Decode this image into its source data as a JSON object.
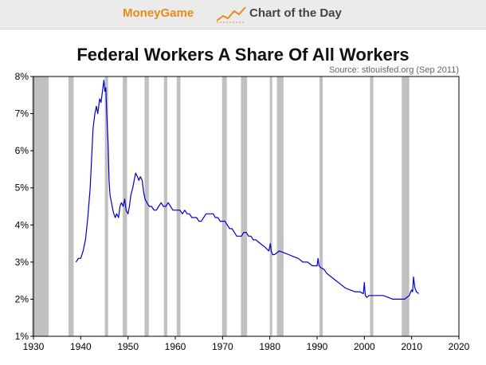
{
  "banner": {
    "brand": "MoneyGame",
    "brand_icon": "trend-line-icon",
    "title": "Chart of the Day",
    "background": "#ebebeb",
    "brand_color": "#e88a1a"
  },
  "chart_data": {
    "type": "line",
    "title": "Federal Workers A Share Of All Workers",
    "source": "Source: stlouisfed.org (Sep 2011)",
    "xlabel": "",
    "ylabel": "",
    "xlim": [
      1930,
      2020
    ],
    "ylim": [
      1,
      8
    ],
    "x_ticks": [
      1930,
      1940,
      1950,
      1960,
      1970,
      1980,
      1990,
      2000,
      2010,
      2020
    ],
    "x_tick_labels": [
      "1930",
      "1940",
      "1950",
      "1960",
      "1970",
      "1980",
      "1990",
      "2000",
      "2010",
      "2020"
    ],
    "y_ticks": [
      1,
      2,
      3,
      4,
      5,
      6,
      7,
      8
    ],
    "y_tick_labels": [
      "1%",
      "2%",
      "3%",
      "4%",
      "5%",
      "6%",
      "7%",
      "8%"
    ],
    "grid": false,
    "legend": "none",
    "line_color": "#0000cc",
    "recession_color": "#c0c0c0",
    "recessions": [
      [
        1929.7,
        1933.2
      ],
      [
        1937.4,
        1938.5
      ],
      [
        1945.1,
        1945.8
      ],
      [
        1948.9,
        1949.8
      ],
      [
        1953.5,
        1954.4
      ],
      [
        1957.6,
        1958.3
      ],
      [
        1960.3,
        1961.1
      ],
      [
        1969.9,
        1970.9
      ],
      [
        1973.9,
        1975.2
      ],
      [
        1980.0,
        1980.5
      ],
      [
        1981.5,
        1982.9
      ],
      [
        1990.5,
        1991.2
      ],
      [
        2001.2,
        2001.9
      ],
      [
        2007.9,
        2009.5
      ]
    ],
    "series": [
      {
        "x": [
          1939.0,
          1939.5,
          1940.0,
          1940.5,
          1941.0,
          1941.5,
          1942.0,
          1942.3,
          1942.6,
          1943.0,
          1943.3,
          1943.6,
          1944.0,
          1944.3,
          1944.6,
          1944.9,
          1945.1,
          1945.3,
          1945.5,
          1945.8,
          1946.0,
          1946.2,
          1946.5,
          1946.8,
          1947.0,
          1947.3,
          1947.6,
          1948.0,
          1948.3,
          1948.6,
          1949.0,
          1949.3,
          1949.6,
          1950.0,
          1950.3,
          1950.6,
          1951.0,
          1951.3,
          1951.6,
          1952.0,
          1952.3,
          1952.6,
          1953.0,
          1953.3,
          1953.6,
          1954.0,
          1954.5,
          1955.0,
          1955.5,
          1956.0,
          1956.5,
          1957.0,
          1957.5,
          1958.0,
          1958.5,
          1959.0,
          1959.5,
          1960.0,
          1960.5,
          1961.0,
          1961.5,
          1962.0,
          1962.5,
          1963.0,
          1963.5,
          1964.0,
          1964.5,
          1965.0,
          1965.5,
          1966.0,
          1966.5,
          1967.0,
          1967.5,
          1968.0,
          1968.5,
          1969.0,
          1969.5,
          1970.0,
          1970.5,
          1971.0,
          1971.5,
          1972.0,
          1972.5,
          1973.0,
          1973.5,
          1974.0,
          1974.5,
          1975.0,
          1975.5,
          1976.0,
          1976.5,
          1977.0,
          1978.0,
          1979.0,
          1979.8,
          1980.1,
          1980.3,
          1980.6,
          1981.0,
          1982.0,
          1983.0,
          1984.0,
          1985.0,
          1986.0,
          1987.0,
          1988.0,
          1989.0,
          1990.0,
          1990.2,
          1990.4,
          1990.8,
          1991.5,
          1992.0,
          1993.0,
          1994.0,
          1995.0,
          1996.0,
          1997.0,
          1998.0,
          1999.0,
          1999.8,
          2000.0,
          2000.2,
          2000.5,
          2001.0,
          2002.0,
          2003.0,
          2004.0,
          2005.0,
          2006.0,
          2007.0,
          2007.5,
          2008.0,
          2008.5,
          2009.0,
          2009.5,
          2009.8,
          2010.0,
          2010.2,
          2010.4,
          2010.7,
          2011.0,
          2011.5
        ],
        "y": [
          3.0,
          3.1,
          3.1,
          3.3,
          3.6,
          4.2,
          5.0,
          5.8,
          6.6,
          7.0,
          7.2,
          7.0,
          7.4,
          7.3,
          7.6,
          7.9,
          7.6,
          7.7,
          7.0,
          6.2,
          5.2,
          4.8,
          4.6,
          4.4,
          4.3,
          4.2,
          4.3,
          4.2,
          4.5,
          4.6,
          4.5,
          4.7,
          4.4,
          4.3,
          4.5,
          4.8,
          5.0,
          5.2,
          5.4,
          5.3,
          5.2,
          5.3,
          5.2,
          4.9,
          4.7,
          4.6,
          4.5,
          4.5,
          4.4,
          4.4,
          4.5,
          4.6,
          4.5,
          4.5,
          4.6,
          4.5,
          4.4,
          4.4,
          4.4,
          4.4,
          4.3,
          4.4,
          4.3,
          4.3,
          4.2,
          4.2,
          4.2,
          4.1,
          4.1,
          4.2,
          4.3,
          4.3,
          4.3,
          4.3,
          4.2,
          4.2,
          4.1,
          4.1,
          4.1,
          4.0,
          3.9,
          3.9,
          3.8,
          3.7,
          3.7,
          3.7,
          3.8,
          3.8,
          3.7,
          3.7,
          3.6,
          3.6,
          3.5,
          3.4,
          3.3,
          3.5,
          3.3,
          3.2,
          3.2,
          3.3,
          3.25,
          3.2,
          3.15,
          3.1,
          3.0,
          3.0,
          2.9,
          2.9,
          3.1,
          2.9,
          2.85,
          2.8,
          2.7,
          2.6,
          2.5,
          2.4,
          2.3,
          2.25,
          2.2,
          2.2,
          2.15,
          2.45,
          2.1,
          2.05,
          2.1,
          2.1,
          2.1,
          2.1,
          2.05,
          2.0,
          2.0,
          2.0,
          2.0,
          2.0,
          2.05,
          2.1,
          2.2,
          2.25,
          2.2,
          2.6,
          2.3,
          2.2,
          2.15
        ]
      }
    ]
  }
}
